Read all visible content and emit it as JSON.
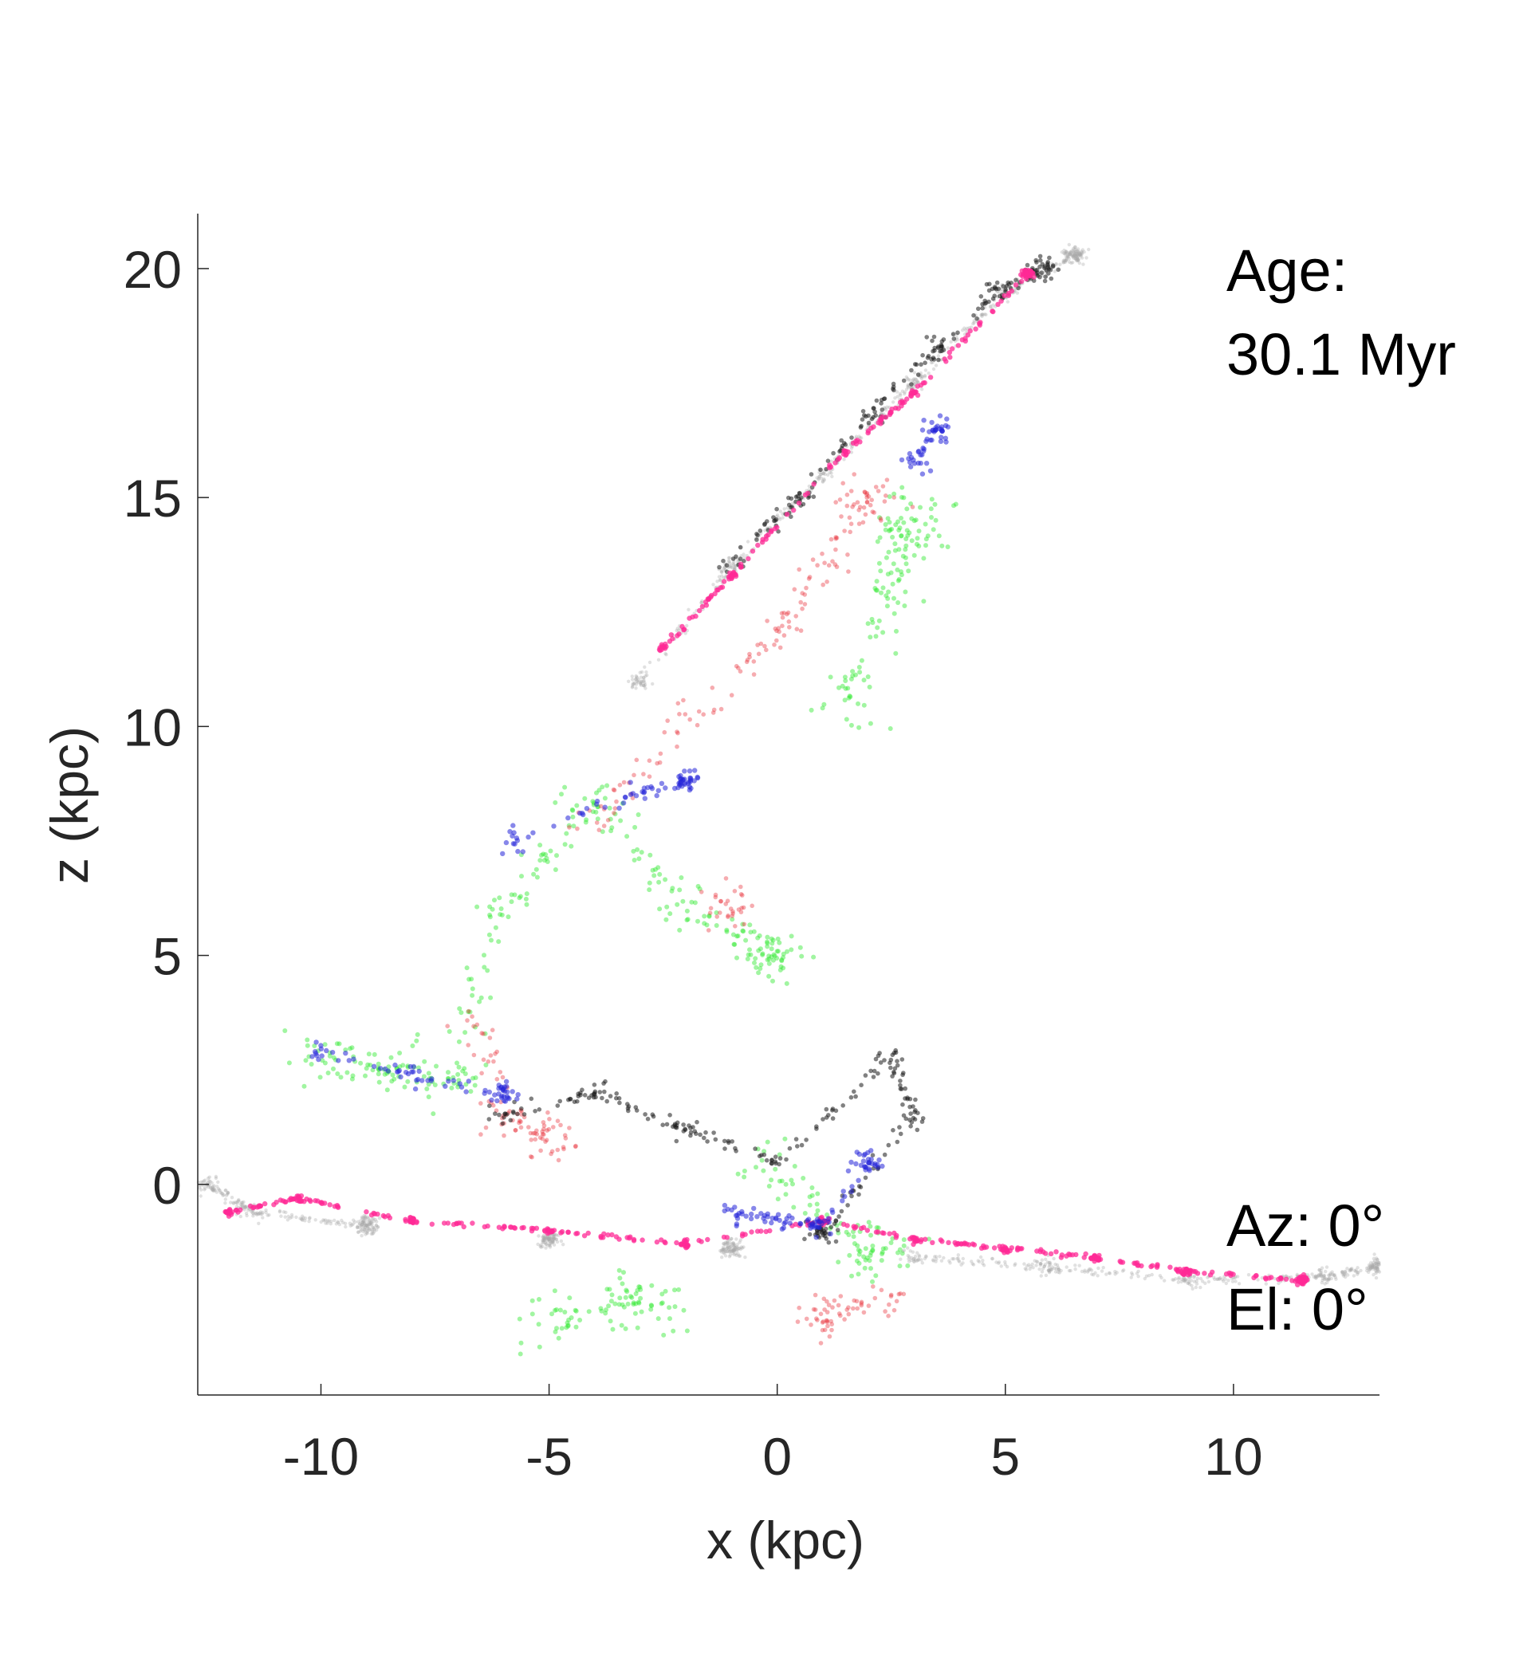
{
  "chart_data": {
    "type": "scatter",
    "title": "",
    "xlabel": "x (kpc)",
    "ylabel": "z (kpc)",
    "xlim": [
      -12.7,
      13.2
    ],
    "ylim": [
      -4.6,
      21.2
    ],
    "xticks": [
      -10,
      -5,
      0,
      5,
      10
    ],
    "yticks": [
      0,
      5,
      10,
      15,
      20
    ],
    "xtick_labels": [
      "-10",
      "-5",
      "0",
      "5",
      "10"
    ],
    "ytick_labels": [
      "0",
      "5",
      "10",
      "15",
      "20"
    ],
    "grid": false,
    "legend": "none",
    "annotations": {
      "age_label": "Age:",
      "age_value": "30.1 Myr",
      "azimuth": "Az: 0°",
      "elevation": "El: 0°"
    },
    "series_colors": {
      "gray": "#a8a8a8",
      "pink": "#ff2a96",
      "black": "#1a1a1a",
      "green": "#2ee82e",
      "red": "#e8303a",
      "blue": "#2424d8"
    },
    "series": [
      {
        "color": "gray",
        "description_points": [
          [
            -12.5,
            0.0
          ],
          [
            -11.5,
            -0.6
          ],
          [
            -9.0,
            -0.9
          ],
          [
            -5.0,
            -1.2
          ],
          [
            -1.0,
            -1.4
          ],
          [
            3.0,
            -1.6
          ],
          [
            6.0,
            -1.8
          ],
          [
            9.0,
            -2.1
          ],
          [
            12.0,
            -2.0
          ],
          [
            13.2,
            -1.8
          ],
          [
            -3.0,
            11.0
          ],
          [
            -1.0,
            13.5
          ],
          [
            1.0,
            15.5
          ],
          [
            3.0,
            17.5
          ],
          [
            5.0,
            19.5
          ],
          [
            6.5,
            20.3
          ]
        ]
      },
      {
        "color": "pink",
        "description_points": [
          [
            -12.0,
            -0.6
          ],
          [
            -10.5,
            -0.3
          ],
          [
            -8.0,
            -0.8
          ],
          [
            -5.0,
            -1.0
          ],
          [
            -2.0,
            -1.3
          ],
          [
            1.0,
            -0.8
          ],
          [
            3.0,
            -1.2
          ],
          [
            5.0,
            -1.4
          ],
          [
            7.0,
            -1.6
          ],
          [
            9.0,
            -1.9
          ],
          [
            11.5,
            -2.1
          ],
          [
            -2.5,
            11.7
          ],
          [
            -1.0,
            13.3
          ],
          [
            1.5,
            16.0
          ],
          [
            3.0,
            17.3
          ],
          [
            5.5,
            19.9
          ]
        ]
      },
      {
        "color": "black",
        "description_points": [
          [
            -1.0,
            13.6
          ],
          [
            0.5,
            15.0
          ],
          [
            2.0,
            16.8
          ],
          [
            3.5,
            18.3
          ],
          [
            4.8,
            19.5
          ],
          [
            5.8,
            20.0
          ],
          [
            -6.0,
            1.5
          ],
          [
            -4.0,
            2.0
          ],
          [
            -2.0,
            1.2
          ],
          [
            0.0,
            0.5
          ],
          [
            2.5,
            2.8
          ],
          [
            3.0,
            1.5
          ],
          [
            1.0,
            -1.0
          ]
        ]
      },
      {
        "color": "green",
        "description_points": [
          [
            -10.0,
            2.8
          ],
          [
            -8.5,
            2.5
          ],
          [
            -7.0,
            2.2
          ],
          [
            -6.0,
            6.0
          ],
          [
            -4.0,
            8.5
          ],
          [
            -2.0,
            6.0
          ],
          [
            0.0,
            5.0
          ],
          [
            1.5,
            10.5
          ],
          [
            2.5,
            13.0
          ],
          [
            3.0,
            14.5
          ],
          [
            0.0,
            0.3
          ],
          [
            2.0,
            -1.5
          ],
          [
            -5.0,
            -3.0
          ],
          [
            -3.0,
            -2.5
          ]
        ]
      },
      {
        "color": "red",
        "description_points": [
          [
            -6.5,
            3.5
          ],
          [
            -6.0,
            1.5
          ],
          [
            -5.0,
            1.0
          ],
          [
            -4.0,
            8.0
          ],
          [
            -2.0,
            10.0
          ],
          [
            0.0,
            12.0
          ],
          [
            1.0,
            13.5
          ],
          [
            2.0,
            15.0
          ],
          [
            -1.0,
            6.0
          ],
          [
            2.5,
            -2.5
          ],
          [
            1.0,
            -2.8
          ]
        ]
      },
      {
        "color": "blue",
        "description_points": [
          [
            -10.0,
            2.9
          ],
          [
            -8.0,
            2.4
          ],
          [
            -6.0,
            2.0
          ],
          [
            -5.8,
            7.5
          ],
          [
            -3.2,
            8.5
          ],
          [
            -2.0,
            8.8
          ],
          [
            -1.0,
            -0.6
          ],
          [
            0.0,
            -0.8
          ],
          [
            1.0,
            -0.9
          ],
          [
            2.0,
            0.5
          ],
          [
            3.0,
            15.8
          ],
          [
            3.5,
            16.5
          ]
        ]
      }
    ]
  }
}
